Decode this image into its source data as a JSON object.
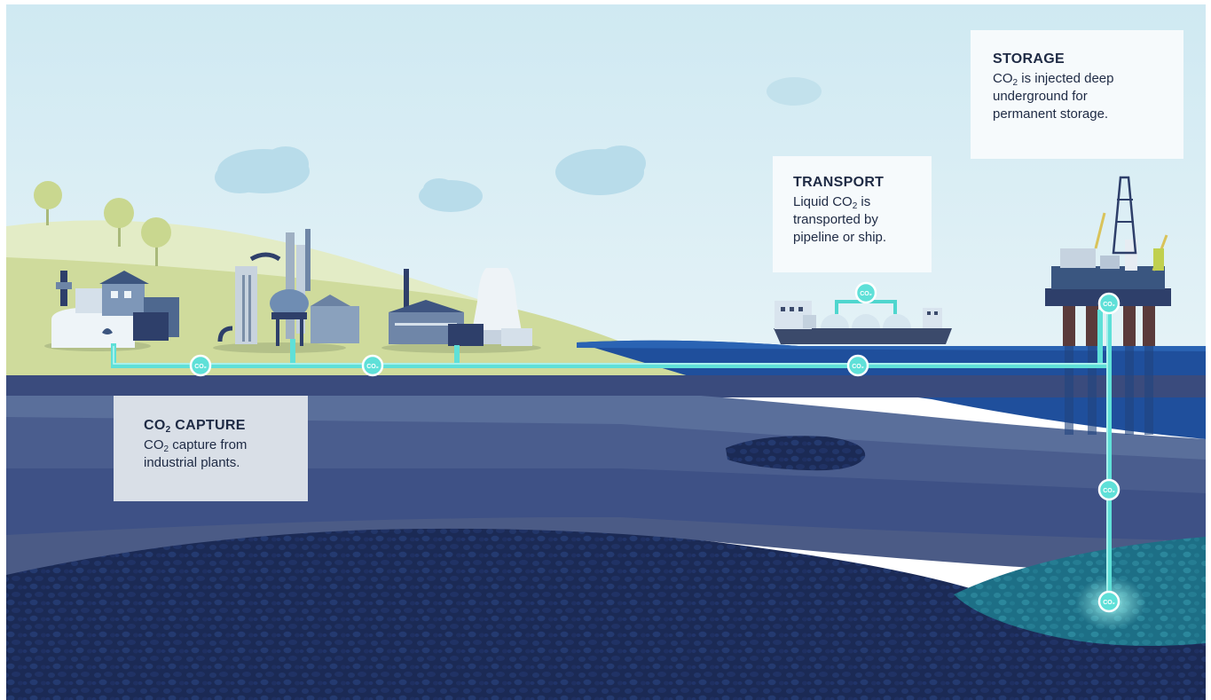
{
  "storage": {
    "title": "STORAGE",
    "line1_pre": "CO",
    "line1_sub": "2",
    "line1_post": " is injected deep",
    "line2": "underground for",
    "line3": "permanent storage."
  },
  "transport": {
    "title": "TRANSPORT",
    "line1_pre": "Liquid CO",
    "line1_sub": "2",
    "line1_post": " is",
    "line2": "transported by",
    "line3": "pipeline or ship."
  },
  "capture": {
    "title_pre": "CO",
    "title_sub": "2",
    "title_post": " CAPTURE",
    "line1_pre": "CO",
    "line1_sub": "2",
    "line1_post": " capture from",
    "line2": "industrial plants."
  },
  "pipeline_badge": "CO₂",
  "colors": {
    "sky": "#dbeef5",
    "hill": "#cfd99a",
    "sea": "#1f4f9c",
    "pipe": "#5fe0d8",
    "deep_rock": "#1c2b57",
    "storage_glow": "#2f8fa3",
    "box_dark_text": "#1e2a44"
  },
  "icons": [
    "cloud-icon",
    "tree-icon",
    "factory-icon",
    "power-plant-icon",
    "cooling-tower-icon",
    "ship-icon",
    "oil-rig-icon",
    "co2-badge-icon"
  ]
}
